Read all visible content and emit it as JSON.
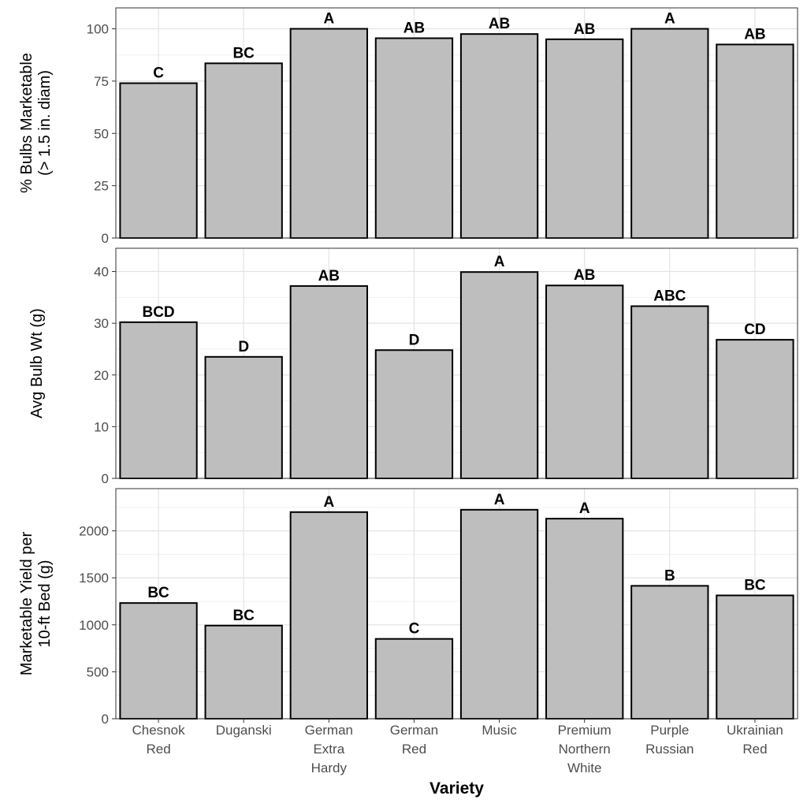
{
  "chart_data": {
    "type": "bar",
    "xlabel": "Variety",
    "categories": [
      [
        "Chesnok",
        "Red"
      ],
      [
        "Duganski"
      ],
      [
        "German",
        "Extra",
        "Hardy"
      ],
      [
        "German",
        "Red"
      ],
      [
        "Music"
      ],
      [
        "Premium",
        "Northern",
        "White"
      ],
      [
        "Purple",
        "Russian"
      ],
      [
        "Ukrainian",
        "Red"
      ]
    ],
    "bar_color": "#bebebe",
    "bar_outline": "#000000",
    "grid": true,
    "panels": [
      {
        "ylabel": [
          "% Bulbs Marketable",
          "(> 1.5 in. diam)"
        ],
        "ylim": [
          0,
          110
        ],
        "yticks": [
          0,
          25,
          50,
          75,
          100
        ],
        "values": [
          74,
          83.5,
          100,
          95.5,
          97.5,
          95,
          100,
          92.5
        ],
        "labels": [
          "C",
          "BC",
          "A",
          "AB",
          "AB",
          "AB",
          "A",
          "AB"
        ]
      },
      {
        "ylabel": [
          "Avg Bulb Wt (g)"
        ],
        "ylim": [
          0,
          44.5
        ],
        "yticks": [
          0,
          10,
          20,
          30,
          40
        ],
        "values": [
          30.2,
          23.5,
          37.2,
          24.8,
          39.9,
          37.3,
          33.3,
          26.8
        ],
        "labels": [
          "BCD",
          "D",
          "AB",
          "D",
          "A",
          "AB",
          "ABC",
          "CD"
        ]
      },
      {
        "ylabel": [
          "Marketable Yield per",
          "10-ft Bed (g)"
        ],
        "ylim": [
          0,
          2450
        ],
        "yticks": [
          0,
          500,
          1000,
          1500,
          2000
        ],
        "values": [
          1232,
          992,
          2200,
          850,
          2225,
          2130,
          1415,
          1313
        ],
        "labels": [
          "BC",
          "BC",
          "A",
          "C",
          "A",
          "A",
          "B",
          "BC"
        ]
      }
    ]
  }
}
